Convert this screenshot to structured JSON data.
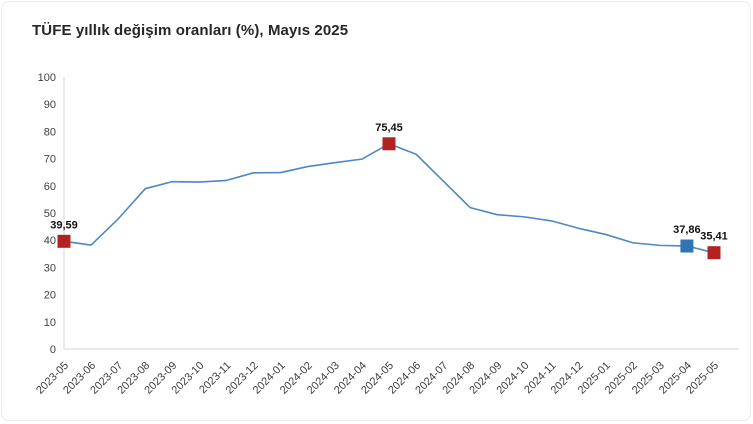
{
  "chart_data": {
    "type": "line",
    "title": "TÜFE yıllık değişim oranları (%), Mayıs 2025",
    "categories": [
      "2023-05",
      "2023-06",
      "2023-07",
      "2023-08",
      "2023-09",
      "2023-10",
      "2023-11",
      "2023-12",
      "2024-01",
      "2024-02",
      "2024-03",
      "2024-04",
      "2024-05",
      "2024-06",
      "2024-07",
      "2024-08",
      "2024-09",
      "2024-10",
      "2024-11",
      "2024-12",
      "2025-01",
      "2025-02",
      "2025-03",
      "2025-04",
      "2025-05"
    ],
    "values": [
      39.59,
      38.21,
      47.83,
      58.94,
      61.53,
      61.36,
      61.98,
      64.77,
      64.86,
      67.07,
      68.5,
      69.8,
      75.45,
      71.6,
      61.78,
      51.97,
      49.38,
      48.58,
      47.09,
      44.38,
      42.12,
      39.05,
      38.1,
      37.86,
      35.41
    ],
    "ylim": [
      0,
      100
    ],
    "ytick_step": 10,
    "grid": "off",
    "legend": "none",
    "xlabel": "",
    "ylabel": "",
    "line_color": "#4e87c2",
    "axis_color": "#d6d6d6",
    "marked_points": [
      {
        "category": "2023-05",
        "index": 0,
        "label": "39,59",
        "marker_color": "#b22222"
      },
      {
        "category": "2024-05",
        "index": 12,
        "label": "75,45",
        "marker_color": "#b22222"
      },
      {
        "category": "2025-04",
        "index": 23,
        "label": "37,86",
        "marker_color": "#2e75b6"
      },
      {
        "category": "2025-05",
        "index": 24,
        "label": "35,41",
        "marker_color": "#b22222"
      }
    ]
  }
}
